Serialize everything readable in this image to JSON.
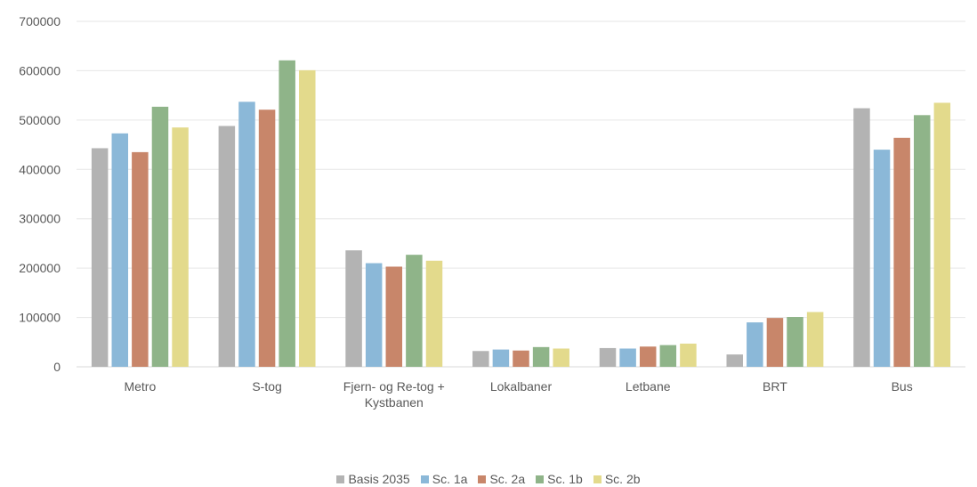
{
  "chart_data": {
    "type": "bar",
    "categories": [
      "Metro",
      "S-tog",
      "Fjern- og Re-tog + Kystbanen",
      "Lokalbaner",
      "Letbane",
      "BRT",
      "Bus"
    ],
    "category_lines": [
      [
        "Metro"
      ],
      [
        "S-tog"
      ],
      [
        "Fjern- og Re-tog +",
        "Kystbanen"
      ],
      [
        "Lokalbaner"
      ],
      [
        "Letbane"
      ],
      [
        "BRT"
      ],
      [
        "Bus"
      ]
    ],
    "series": [
      {
        "name": "Basis 2035",
        "color": "#b3b3b3",
        "values": [
          443000,
          488000,
          236000,
          32000,
          38000,
          25000,
          524000
        ]
      },
      {
        "name": "Sc. 1a",
        "color": "#8bb8d8",
        "values": [
          473000,
          537000,
          210000,
          35000,
          37000,
          90000,
          440000
        ]
      },
      {
        "name": "Sc. 2a",
        "color": "#c8866a",
        "values": [
          435000,
          521000,
          203000,
          33000,
          41000,
          99000,
          464000
        ]
      },
      {
        "name": "Sc. 1b",
        "color": "#8fb489",
        "values": [
          527000,
          621000,
          227000,
          40000,
          44000,
          101000,
          510000
        ]
      },
      {
        "name": "Sc. 2b",
        "color": "#e3da8c",
        "values": [
          485000,
          601000,
          215000,
          37000,
          47000,
          111000,
          535000
        ]
      }
    ],
    "ylim": [
      0,
      700000
    ],
    "yticks": [
      "0",
      "100000",
      "200000",
      "300000",
      "400000",
      "500000",
      "600000",
      "700000"
    ],
    "title": "",
    "xlabel": "",
    "ylabel": "",
    "grid": true,
    "legend_position": "bottom"
  }
}
